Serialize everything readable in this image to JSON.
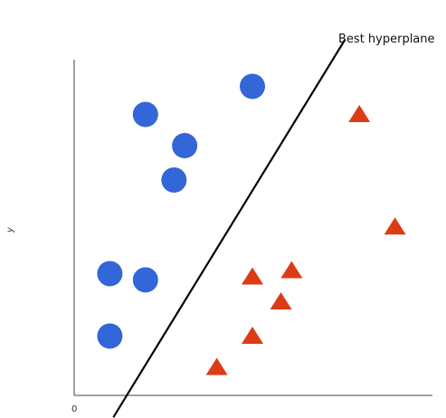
{
  "chart_data": {
    "type": "scatter",
    "title": "",
    "xlabel": "",
    "ylabel": "y",
    "origin_label": "0",
    "xlim": [
      0,
      10
    ],
    "ylim": [
      0,
      10
    ],
    "grid": false,
    "series": [
      {
        "marker": "circle",
        "color": "#3366d6",
        "points": [
          {
            "x": 2.0,
            "y": 9.0
          },
          {
            "x": 5.0,
            "y": 9.9
          },
          {
            "x": 3.1,
            "y": 8.0
          },
          {
            "x": 2.8,
            "y": 6.9
          },
          {
            "x": 1.0,
            "y": 3.9
          },
          {
            "x": 2.0,
            "y": 3.7
          },
          {
            "x": 1.0,
            "y": 1.9
          }
        ]
      },
      {
        "marker": "triangle",
        "color": "#dd3b16",
        "points": [
          {
            "x": 8.0,
            "y": 9.0
          },
          {
            "x": 9.0,
            "y": 5.4
          },
          {
            "x": 5.0,
            "y": 3.8
          },
          {
            "x": 6.1,
            "y": 4.0
          },
          {
            "x": 5.8,
            "y": 3.0
          },
          {
            "x": 5.0,
            "y": 1.9
          },
          {
            "x": 4.0,
            "y": 0.9
          }
        ]
      }
    ],
    "hyperplane": {
      "label": "Best hyperplane",
      "color": "#000000",
      "points": [
        {
          "x": 1.1,
          "y": -0.7
        },
        {
          "x": 7.6,
          "y": 11.4
        }
      ]
    }
  }
}
